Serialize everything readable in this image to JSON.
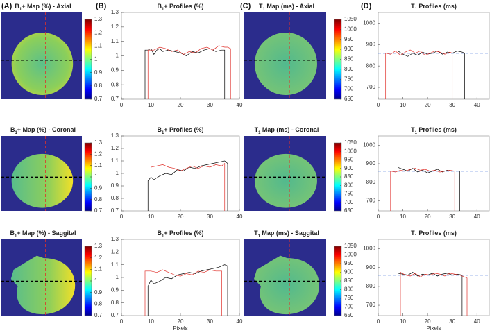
{
  "panels": [
    "(A)",
    "(B)",
    "(C)",
    "(D)"
  ],
  "chart_data": [
    {
      "type": "map",
      "title": "B1+ Map (%) - Axial",
      "clim": [
        0.7,
        1.3
      ],
      "colorbar_ticks": [
        0.7,
        0.8,
        0.9,
        1,
        1.1,
        1.2,
        1.3
      ]
    },
    {
      "type": "line",
      "title": "B1+ Profiles (%)",
      "xlim": [
        0,
        40
      ],
      "ylim": [
        0.7,
        1.3
      ],
      "xticks": [
        0,
        10,
        20,
        30,
        40
      ],
      "yticks": [
        0.7,
        0.8,
        0.9,
        1,
        1.1,
        1.2,
        1.3
      ],
      "series": [
        {
          "color": "#000000",
          "x": [
            8,
            8,
            9,
            10,
            11,
            12,
            13,
            14,
            16,
            18,
            20,
            22,
            24,
            26,
            28,
            30,
            32,
            34,
            35,
            35
          ],
          "values": [
            0.7,
            1.04,
            1.04,
            1.05,
            1.01,
            1.04,
            1.05,
            1.03,
            1.04,
            1.03,
            1.02,
            1.0,
            1.03,
            1.02,
            1.04,
            1.05,
            1.03,
            1.04,
            1.04,
            0.7
          ]
        },
        {
          "color": "#e0302a",
          "x": [
            9,
            9,
            11,
            13,
            15,
            17,
            19,
            21,
            23,
            25,
            27,
            29,
            31,
            33,
            35,
            36,
            37,
            37
          ],
          "values": [
            0.7,
            1.04,
            1.04,
            1.06,
            1.05,
            1.03,
            1.04,
            1.01,
            1.03,
            1.02,
            1.05,
            1.06,
            1.04,
            1.07,
            1.06,
            1.06,
            1.05,
            0.7
          ]
        }
      ]
    },
    {
      "type": "map",
      "title": "T1 Map (ms) - Axial",
      "clim": [
        650,
        1050
      ],
      "colorbar_ticks": [
        650,
        700,
        750,
        800,
        850,
        900,
        950,
        1000,
        1050
      ]
    },
    {
      "type": "line",
      "title": "T1 Profiles (ms)",
      "xlim": [
        0,
        45
      ],
      "ylim": [
        645,
        1050
      ],
      "xticks": [
        0,
        10,
        20,
        30,
        40
      ],
      "yticks": [
        700,
        800,
        900,
        1000
      ],
      "reference_line": 860,
      "reference_color": "#3a6fd8",
      "series": [
        {
          "color": "#000000",
          "x": [
            8,
            8,
            10,
            12,
            14,
            16,
            18,
            20,
            22,
            24,
            26,
            28,
            30,
            32,
            34,
            35,
            35
          ],
          "values": [
            645,
            870,
            855,
            845,
            860,
            850,
            865,
            855,
            860,
            870,
            855,
            865,
            860,
            870,
            865,
            860,
            645
          ]
        },
        {
          "color": "#e0302a",
          "x": [
            3,
            3,
            5,
            7,
            9,
            11,
            13,
            15,
            17,
            19,
            21,
            23,
            25,
            27,
            29,
            30,
            30
          ],
          "values": [
            645,
            860,
            855,
            870,
            850,
            865,
            875,
            860,
            870,
            850,
            860,
            870,
            865,
            855,
            865,
            860,
            645
          ]
        }
      ]
    },
    {
      "type": "map",
      "title": "B1+ Map (%) - Coronal",
      "clim": [
        0.7,
        1.3
      ],
      "colorbar_ticks": [
        0.7,
        0.8,
        0.9,
        1,
        1.1,
        1.2,
        1.3
      ]
    },
    {
      "type": "line",
      "title": "B1+ Profiles (%)",
      "xlim": [
        0,
        40
      ],
      "ylim": [
        0.7,
        1.3
      ],
      "xticks": [
        0,
        10,
        20,
        30,
        40
      ],
      "yticks": [
        0.7,
        0.8,
        0.9,
        1,
        1.1,
        1.2,
        1.3
      ],
      "series": [
        {
          "color": "#000000",
          "x": [
            9,
            9,
            10,
            11,
            13,
            15,
            17,
            19,
            21,
            23,
            25,
            27,
            29,
            31,
            33,
            35,
            36,
            36
          ],
          "values": [
            0.7,
            0.94,
            0.97,
            0.95,
            0.98,
            1.0,
            0.99,
            1.03,
            1.02,
            1.05,
            1.04,
            1.06,
            1.07,
            1.08,
            1.09,
            1.1,
            1.08,
            0.7
          ]
        },
        {
          "color": "#e0302a",
          "x": [
            10,
            10,
            12,
            14,
            16,
            18,
            20,
            22,
            24,
            26,
            28,
            30,
            32,
            34,
            35,
            35
          ],
          "values": [
            0.7,
            1.05,
            1.06,
            1.07,
            1.05,
            1.04,
            1.02,
            1.04,
            1.06,
            1.04,
            1.06,
            1.05,
            1.07,
            1.06,
            1.08,
            0.7
          ]
        }
      ]
    },
    {
      "type": "map",
      "title": "T1 Map (ms) - Coronal",
      "clim": [
        650,
        1050
      ],
      "colorbar_ticks": [
        650,
        700,
        750,
        800,
        850,
        900,
        950,
        1000,
        1050
      ]
    },
    {
      "type": "line",
      "title": "T1 Profiles (ms)",
      "xlim": [
        0,
        45
      ],
      "ylim": [
        645,
        1050
      ],
      "xticks": [
        0,
        10,
        20,
        30,
        40
      ],
      "yticks": [
        700,
        800,
        900,
        1000
      ],
      "reference_line": 860,
      "reference_color": "#3a6fd8",
      "series": [
        {
          "color": "#000000",
          "x": [
            8,
            8,
            10,
            12,
            14,
            16,
            18,
            20,
            22,
            24,
            26,
            28,
            30,
            32,
            33,
            33
          ],
          "values": [
            645,
            880,
            870,
            860,
            875,
            855,
            865,
            850,
            860,
            870,
            855,
            865,
            860,
            860,
            860,
            645
          ]
        },
        {
          "color": "#e0302a",
          "x": [
            5,
            5,
            7,
            9,
            11,
            13,
            15,
            17,
            19,
            21,
            23,
            25,
            27,
            29,
            31,
            31
          ],
          "values": [
            645,
            860,
            855,
            865,
            860,
            870,
            875,
            865,
            870,
            860,
            865,
            855,
            860,
            865,
            860,
            645
          ]
        }
      ]
    },
    {
      "type": "map",
      "title": "B1+ Map (%) - Saggital",
      "clim": [
        0.7,
        1.3
      ],
      "colorbar_ticks": [
        0.7,
        0.8,
        0.9,
        1,
        1.1,
        1.2,
        1.3
      ]
    },
    {
      "type": "line",
      "title": "B1+ Profiles (%)",
      "xlim": [
        0,
        40
      ],
      "ylim": [
        0.7,
        1.3
      ],
      "xticks": [
        0,
        10,
        20,
        30,
        40
      ],
      "yticks": [
        0.7,
        0.8,
        0.9,
        1,
        1.1,
        1.2,
        1.3
      ],
      "xlabel": "Pixels",
      "series": [
        {
          "color": "#000000",
          "x": [
            9,
            9,
            10,
            11,
            13,
            15,
            17,
            19,
            21,
            23,
            25,
            27,
            29,
            31,
            33,
            35,
            36,
            36
          ],
          "values": [
            0.7,
            0.93,
            0.98,
            0.95,
            0.97,
            1.0,
            0.99,
            1.02,
            1.03,
            1.04,
            1.03,
            1.05,
            1.06,
            1.07,
            1.08,
            1.1,
            1.09,
            0.7
          ]
        },
        {
          "color": "#e0302a",
          "x": [
            8,
            8,
            10,
            12,
            14,
            16,
            18,
            20,
            22,
            24,
            26,
            28,
            30,
            32,
            34,
            34
          ],
          "values": [
            0.7,
            1.05,
            1.05,
            1.04,
            1.06,
            1.04,
            1.02,
            1.01,
            1.03,
            1.02,
            1.05,
            1.04,
            1.06,
            1.05,
            1.05,
            0.7
          ]
        }
      ]
    },
    {
      "type": "map",
      "title": "T1 Map (ms) - Saggital",
      "clim": [
        650,
        1050
      ],
      "colorbar_ticks": [
        650,
        700,
        750,
        800,
        850,
        900,
        950,
        1000,
        1050
      ]
    },
    {
      "type": "line",
      "title": "T1 Profiles (ms)",
      "xlim": [
        0,
        45
      ],
      "ylim": [
        645,
        1050
      ],
      "xticks": [
        0,
        10,
        20,
        30,
        40
      ],
      "yticks": [
        700,
        800,
        900,
        1000
      ],
      "reference_line": 860,
      "reference_color": "#3a6fd8",
      "xlabel": "Pixels",
      "series": [
        {
          "color": "#000000",
          "x": [
            8,
            8,
            10,
            12,
            14,
            16,
            18,
            20,
            22,
            24,
            26,
            28,
            30,
            32,
            34,
            34
          ],
          "values": [
            645,
            870,
            865,
            860,
            875,
            855,
            865,
            860,
            870,
            855,
            865,
            870,
            860,
            865,
            860,
            645
          ]
        },
        {
          "color": "#e0302a",
          "x": [
            9,
            9,
            11,
            13,
            15,
            17,
            19,
            21,
            23,
            25,
            27,
            29,
            31,
            33,
            36,
            36
          ],
          "values": [
            645,
            875,
            860,
            855,
            870,
            850,
            865,
            860,
            870,
            865,
            855,
            870,
            865,
            860,
            845,
            645
          ]
        }
      ]
    }
  ]
}
